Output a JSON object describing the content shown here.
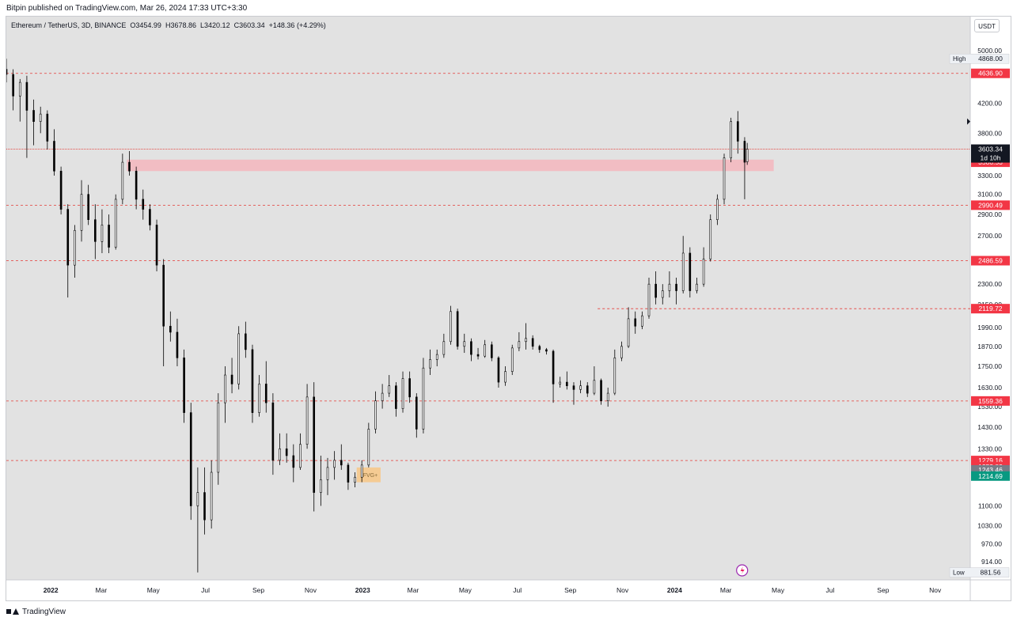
{
  "header": {
    "published": "Bitpin published on TradingView.com, Mar 26, 2024 17:33 UTC+3:30"
  },
  "legend": {
    "symbol": "Ethereum / TetherUS, 3D, BINANCE",
    "open": "O3454.99",
    "high": "H3678.86",
    "low": "L3420.12",
    "close": "C3603.34",
    "change": "+148.36 (+4.29%)"
  },
  "currency_button": "USDT",
  "footer": {
    "brand": "TradingView"
  },
  "colors": {
    "background": "#e2e2e2",
    "candle": "#000000",
    "level_line": "#e53935",
    "level_tag": "#f23645",
    "zone_fill": "#f4b6bd",
    "fvg_fill": "#f7c98b",
    "current_price_tag": "#131722",
    "green_tag": "#089981",
    "grey_tag": "#787b86"
  },
  "chart_data": {
    "type": "candlestick",
    "title": "Ethereum / TetherUS, 3D, BINANCE",
    "y_scale": "log",
    "ylim": [
      860,
      5600
    ],
    "xlim": [
      "2021-11-10",
      "2024-12-12"
    ],
    "y_ticks": [
      5000,
      4200,
      3800,
      3300,
      3100,
      2900,
      2700,
      2300,
      2150,
      1990,
      1870,
      1750,
      1630,
      1530,
      1430,
      1330,
      1100,
      1030,
      970,
      914
    ],
    "x_ticks": [
      {
        "label": "2022",
        "date": "2022-01-01"
      },
      {
        "label": "Mar",
        "date": "2022-03-01"
      },
      {
        "label": "May",
        "date": "2022-05-01"
      },
      {
        "label": "Jul",
        "date": "2022-07-01"
      },
      {
        "label": "Sep",
        "date": "2022-09-01"
      },
      {
        "label": "Nov",
        "date": "2022-11-01"
      },
      {
        "label": "2023",
        "date": "2023-01-01"
      },
      {
        "label": "Mar",
        "date": "2023-03-01"
      },
      {
        "label": "May",
        "date": "2023-05-01"
      },
      {
        "label": "Jul",
        "date": "2023-07-01"
      },
      {
        "label": "Sep",
        "date": "2023-09-01"
      },
      {
        "label": "Nov",
        "date": "2023-11-01"
      },
      {
        "label": "2024",
        "date": "2024-01-01"
      },
      {
        "label": "Mar",
        "date": "2024-03-01"
      },
      {
        "label": "May",
        "date": "2024-05-01"
      },
      {
        "label": "Jul",
        "date": "2024-07-01"
      },
      {
        "label": "Sep",
        "date": "2024-09-01"
      },
      {
        "label": "Nov",
        "date": "2024-11-01"
      }
    ],
    "horizontal_levels": [
      {
        "price": 4636.9,
        "label": "4636.90",
        "start": "2021-11-10"
      },
      {
        "price": 2990.49,
        "label": "2990.49",
        "start": "2021-11-10"
      },
      {
        "price": 2486.59,
        "label": "2486.59",
        "start": "2021-11-10"
      },
      {
        "price": 2119.72,
        "label": "2119.72",
        "start": "2023-10-03"
      },
      {
        "price": 1559.36,
        "label": "1559.36",
        "start": "2021-11-10"
      },
      {
        "price": 1279.16,
        "label": "1279.16",
        "start": "2021-11-10"
      }
    ],
    "extra_tags": [
      {
        "label": "1252.83",
        "price": 1252.83,
        "color": "level_tag"
      },
      {
        "label": "1243.46",
        "price": 1240,
        "color": "grey_tag"
      },
      {
        "label": "1214.69",
        "price": 1214.69,
        "color": "green_tag"
      },
      {
        "label": "3586.53",
        "price": 3450,
        "color": "level_tag"
      }
    ],
    "current_price": {
      "price": 3603.34,
      "label": "3603.34",
      "countdown": "1d 10h"
    },
    "high_marker": {
      "label": "High",
      "value": "4868.00",
      "price": 4868
    },
    "low_marker": {
      "label": "Low",
      "value": "881.56",
      "price": 881.56
    },
    "zones": [
      {
        "name": "supply-zone",
        "from_date": "2022-03-31",
        "to_date": "2024-04-26",
        "low": 3350,
        "high": 3480
      }
    ],
    "fvg": {
      "label": "FVG+",
      "from_date": "2022-12-25",
      "to_date": "2023-01-22",
      "low": 1190,
      "high": 1250
    },
    "candles": [
      {
        "t": "2021-11-10",
        "o": 4700,
        "h": 4868,
        "l": 4500,
        "c": 4620
      },
      {
        "t": "2021-11-18",
        "o": 4620,
        "h": 4700,
        "l": 4100,
        "c": 4300
      },
      {
        "t": "2021-11-26",
        "o": 4300,
        "h": 4550,
        "l": 3950,
        "c": 4500
      },
      {
        "t": "2021-12-04",
        "o": 4500,
        "h": 4600,
        "l": 3500,
        "c": 4100
      },
      {
        "t": "2021-12-12",
        "o": 4100,
        "h": 4250,
        "l": 3650,
        "c": 3950
      },
      {
        "t": "2021-12-20",
        "o": 3950,
        "h": 4150,
        "l": 3800,
        "c": 4050
      },
      {
        "t": "2021-12-28",
        "o": 4050,
        "h": 4100,
        "l": 3600,
        "c": 3700
      },
      {
        "t": "2022-01-05",
        "o": 3700,
        "h": 3850,
        "l": 3300,
        "c": 3350
      },
      {
        "t": "2022-01-13",
        "o": 3350,
        "h": 3400,
        "l": 2900,
        "c": 2950
      },
      {
        "t": "2022-01-21",
        "o": 2950,
        "h": 3000,
        "l": 2200,
        "c": 2450
      },
      {
        "t": "2022-01-29",
        "o": 2450,
        "h": 2800,
        "l": 2350,
        "c": 2750
      },
      {
        "t": "2022-02-06",
        "o": 2750,
        "h": 3250,
        "l": 2650,
        "c": 3100
      },
      {
        "t": "2022-02-14",
        "o": 3100,
        "h": 3200,
        "l": 2800,
        "c": 2850
      },
      {
        "t": "2022-02-22",
        "o": 2850,
        "h": 3000,
        "l": 2500,
        "c": 2650
      },
      {
        "t": "2022-03-02",
        "o": 2650,
        "h": 2950,
        "l": 2550,
        "c": 2800
      },
      {
        "t": "2022-03-10",
        "o": 2800,
        "h": 2900,
        "l": 2550,
        "c": 2600
      },
      {
        "t": "2022-03-18",
        "o": 2600,
        "h": 3100,
        "l": 2580,
        "c": 3050
      },
      {
        "t": "2022-03-26",
        "o": 3050,
        "h": 3550,
        "l": 3000,
        "c": 3450
      },
      {
        "t": "2022-04-03",
        "o": 3450,
        "h": 3580,
        "l": 3300,
        "c": 3350
      },
      {
        "t": "2022-04-11",
        "o": 3350,
        "h": 3400,
        "l": 2950,
        "c": 3050
      },
      {
        "t": "2022-04-19",
        "o": 3050,
        "h": 3150,
        "l": 2850,
        "c": 2950
      },
      {
        "t": "2022-04-27",
        "o": 2950,
        "h": 3000,
        "l": 2750,
        "c": 2800
      },
      {
        "t": "2022-05-05",
        "o": 2800,
        "h": 2850,
        "l": 2400,
        "c": 2450
      },
      {
        "t": "2022-05-13",
        "o": 2450,
        "h": 2500,
        "l": 1750,
        "c": 2000
      },
      {
        "t": "2022-05-21",
        "o": 2000,
        "h": 2100,
        "l": 1900,
        "c": 1960
      },
      {
        "t": "2022-05-29",
        "o": 1960,
        "h": 2050,
        "l": 1750,
        "c": 1800
      },
      {
        "t": "2022-06-06",
        "o": 1800,
        "h": 1850,
        "l": 1450,
        "c": 1500
      },
      {
        "t": "2022-06-14",
        "o": 1500,
        "h": 1550,
        "l": 1050,
        "c": 1100
      },
      {
        "t": "2022-06-22",
        "o": 1100,
        "h": 1250,
        "l": 881.56,
        "c": 1150
      },
      {
        "t": "2022-06-30",
        "o": 1150,
        "h": 1250,
        "l": 1000,
        "c": 1050
      },
      {
        "t": "2022-07-08",
        "o": 1050,
        "h": 1280,
        "l": 1020,
        "c": 1230
      },
      {
        "t": "2022-07-16",
        "o": 1230,
        "h": 1600,
        "l": 1180,
        "c": 1550
      },
      {
        "t": "2022-07-24",
        "o": 1550,
        "h": 1750,
        "l": 1450,
        "c": 1700
      },
      {
        "t": "2022-08-01",
        "o": 1700,
        "h": 1800,
        "l": 1600,
        "c": 1650
      },
      {
        "t": "2022-08-09",
        "o": 1650,
        "h": 2000,
        "l": 1620,
        "c": 1950
      },
      {
        "t": "2022-08-17",
        "o": 1950,
        "h": 2030,
        "l": 1800,
        "c": 1850
      },
      {
        "t": "2022-08-25",
        "o": 1850,
        "h": 1880,
        "l": 1450,
        "c": 1500
      },
      {
        "t": "2022-09-02",
        "o": 1500,
        "h": 1700,
        "l": 1480,
        "c": 1650
      },
      {
        "t": "2022-09-10",
        "o": 1650,
        "h": 1780,
        "l": 1500,
        "c": 1550
      },
      {
        "t": "2022-09-18",
        "o": 1550,
        "h": 1600,
        "l": 1220,
        "c": 1280
      },
      {
        "t": "2022-09-26",
        "o": 1280,
        "h": 1400,
        "l": 1260,
        "c": 1330
      },
      {
        "t": "2022-10-04",
        "o": 1330,
        "h": 1400,
        "l": 1270,
        "c": 1300
      },
      {
        "t": "2022-10-12",
        "o": 1300,
        "h": 1350,
        "l": 1190,
        "c": 1250
      },
      {
        "t": "2022-10-20",
        "o": 1250,
        "h": 1400,
        "l": 1240,
        "c": 1350
      },
      {
        "t": "2022-10-28",
        "o": 1350,
        "h": 1650,
        "l": 1330,
        "c": 1580
      },
      {
        "t": "2022-11-05",
        "o": 1580,
        "h": 1660,
        "l": 1080,
        "c": 1150
      },
      {
        "t": "2022-11-13",
        "o": 1150,
        "h": 1300,
        "l": 1100,
        "c": 1200
      },
      {
        "t": "2022-11-21",
        "o": 1200,
        "h": 1290,
        "l": 1140,
        "c": 1250
      },
      {
        "t": "2022-11-29",
        "o": 1250,
        "h": 1320,
        "l": 1200,
        "c": 1280
      },
      {
        "t": "2022-12-07",
        "o": 1280,
        "h": 1350,
        "l": 1240,
        "c": 1260
      },
      {
        "t": "2022-12-15",
        "o": 1260,
        "h": 1270,
        "l": 1160,
        "c": 1190
      },
      {
        "t": "2022-12-23",
        "o": 1190,
        "h": 1230,
        "l": 1170,
        "c": 1210
      },
      {
        "t": "2022-12-31",
        "o": 1210,
        "h": 1280,
        "l": 1190,
        "c": 1260
      },
      {
        "t": "2023-01-08",
        "o": 1260,
        "h": 1450,
        "l": 1250,
        "c": 1420
      },
      {
        "t": "2023-01-16",
        "o": 1420,
        "h": 1610,
        "l": 1400,
        "c": 1560
      },
      {
        "t": "2023-01-24",
        "o": 1560,
        "h": 1650,
        "l": 1520,
        "c": 1600
      },
      {
        "t": "2023-02-01",
        "o": 1600,
        "h": 1700,
        "l": 1580,
        "c": 1640
      },
      {
        "t": "2023-02-09",
        "o": 1640,
        "h": 1660,
        "l": 1480,
        "c": 1520
      },
      {
        "t": "2023-02-17",
        "o": 1520,
        "h": 1720,
        "l": 1500,
        "c": 1680
      },
      {
        "t": "2023-02-25",
        "o": 1680,
        "h": 1720,
        "l": 1550,
        "c": 1580
      },
      {
        "t": "2023-03-05",
        "o": 1580,
        "h": 1600,
        "l": 1380,
        "c": 1420
      },
      {
        "t": "2023-03-13",
        "o": 1420,
        "h": 1800,
        "l": 1400,
        "c": 1740
      },
      {
        "t": "2023-03-21",
        "o": 1740,
        "h": 1850,
        "l": 1700,
        "c": 1790
      },
      {
        "t": "2023-03-29",
        "o": 1790,
        "h": 1850,
        "l": 1750,
        "c": 1820
      },
      {
        "t": "2023-04-06",
        "o": 1820,
        "h": 1950,
        "l": 1800,
        "c": 1900
      },
      {
        "t": "2023-04-14",
        "o": 1900,
        "h": 2140,
        "l": 1880,
        "c": 2100
      },
      {
        "t": "2023-04-22",
        "o": 2100,
        "h": 2120,
        "l": 1850,
        "c": 1870
      },
      {
        "t": "2023-04-30",
        "o": 1870,
        "h": 1950,
        "l": 1830,
        "c": 1900
      },
      {
        "t": "2023-05-08",
        "o": 1900,
        "h": 1920,
        "l": 1780,
        "c": 1820
      },
      {
        "t": "2023-05-16",
        "o": 1820,
        "h": 1860,
        "l": 1790,
        "c": 1810
      },
      {
        "t": "2023-05-24",
        "o": 1810,
        "h": 1910,
        "l": 1800,
        "c": 1880
      },
      {
        "t": "2023-06-01",
        "o": 1880,
        "h": 1900,
        "l": 1780,
        "c": 1800
      },
      {
        "t": "2023-06-09",
        "o": 1800,
        "h": 1810,
        "l": 1630,
        "c": 1660
      },
      {
        "t": "2023-06-17",
        "o": 1660,
        "h": 1750,
        "l": 1640,
        "c": 1720
      },
      {
        "t": "2023-06-25",
        "o": 1720,
        "h": 1880,
        "l": 1700,
        "c": 1860
      },
      {
        "t": "2023-07-03",
        "o": 1860,
        "h": 1960,
        "l": 1840,
        "c": 1900
      },
      {
        "t": "2023-07-11",
        "o": 1900,
        "h": 2020,
        "l": 1850,
        "c": 1920
      },
      {
        "t": "2023-07-19",
        "o": 1920,
        "h": 1940,
        "l": 1850,
        "c": 1870
      },
      {
        "t": "2023-07-27",
        "o": 1870,
        "h": 1880,
        "l": 1830,
        "c": 1850
      },
      {
        "t": "2023-08-04",
        "o": 1850,
        "h": 1860,
        "l": 1820,
        "c": 1840
      },
      {
        "t": "2023-08-12",
        "o": 1840,
        "h": 1850,
        "l": 1550,
        "c": 1650
      },
      {
        "t": "2023-08-20",
        "o": 1650,
        "h": 1690,
        "l": 1630,
        "c": 1660
      },
      {
        "t": "2023-08-28",
        "o": 1660,
        "h": 1720,
        "l": 1620,
        "c": 1640
      },
      {
        "t": "2023-09-05",
        "o": 1640,
        "h": 1660,
        "l": 1540,
        "c": 1620
      },
      {
        "t": "2023-09-13",
        "o": 1620,
        "h": 1670,
        "l": 1600,
        "c": 1640
      },
      {
        "t": "2023-09-21",
        "o": 1640,
        "h": 1660,
        "l": 1580,
        "c": 1600
      },
      {
        "t": "2023-09-29",
        "o": 1600,
        "h": 1750,
        "l": 1590,
        "c": 1670
      },
      {
        "t": "2023-10-07",
        "o": 1670,
        "h": 1680,
        "l": 1540,
        "c": 1560
      },
      {
        "t": "2023-10-15",
        "o": 1560,
        "h": 1630,
        "l": 1530,
        "c": 1600
      },
      {
        "t": "2023-10-23",
        "o": 1600,
        "h": 1850,
        "l": 1590,
        "c": 1800
      },
      {
        "t": "2023-10-31",
        "o": 1800,
        "h": 1900,
        "l": 1780,
        "c": 1870
      },
      {
        "t": "2023-11-08",
        "o": 1870,
        "h": 2130,
        "l": 1860,
        "c": 2050
      },
      {
        "t": "2023-11-16",
        "o": 2050,
        "h": 2100,
        "l": 1950,
        "c": 2000
      },
      {
        "t": "2023-11-24",
        "o": 2000,
        "h": 2100,
        "l": 1980,
        "c": 2070
      },
      {
        "t": "2023-12-02",
        "o": 2070,
        "h": 2350,
        "l": 2050,
        "c": 2300
      },
      {
        "t": "2023-12-10",
        "o": 2300,
        "h": 2400,
        "l": 2150,
        "c": 2200
      },
      {
        "t": "2023-12-18",
        "o": 2200,
        "h": 2300,
        "l": 2150,
        "c": 2250
      },
      {
        "t": "2023-12-26",
        "o": 2250,
        "h": 2400,
        "l": 2200,
        "c": 2300
      },
      {
        "t": "2024-01-03",
        "o": 2300,
        "h": 2350,
        "l": 2150,
        "c": 2250
      },
      {
        "t": "2024-01-11",
        "o": 2250,
        "h": 2700,
        "l": 2230,
        "c": 2550
      },
      {
        "t": "2024-01-19",
        "o": 2550,
        "h": 2600,
        "l": 2200,
        "c": 2250
      },
      {
        "t": "2024-01-27",
        "o": 2250,
        "h": 2350,
        "l": 2230,
        "c": 2300
      },
      {
        "t": "2024-02-04",
        "o": 2300,
        "h": 2600,
        "l": 2280,
        "c": 2500
      },
      {
        "t": "2024-02-12",
        "o": 2500,
        "h": 2900,
        "l": 2480,
        "c": 2850
      },
      {
        "t": "2024-02-20",
        "o": 2850,
        "h": 3100,
        "l": 2800,
        "c": 3050
      },
      {
        "t": "2024-02-28",
        "o": 3050,
        "h": 3550,
        "l": 3000,
        "c": 3500
      },
      {
        "t": "2024-03-07",
        "o": 3500,
        "h": 4000,
        "l": 3450,
        "c": 3950
      },
      {
        "t": "2024-03-15",
        "o": 3950,
        "h": 4090,
        "l": 3550,
        "c": 3700
      },
      {
        "t": "2024-03-23",
        "o": 3700,
        "h": 3750,
        "l": 3050,
        "c": 3450
      },
      {
        "t": "2024-03-26",
        "o": 3454.99,
        "h": 3678.86,
        "l": 3420.12,
        "c": 3603.34
      }
    ]
  }
}
